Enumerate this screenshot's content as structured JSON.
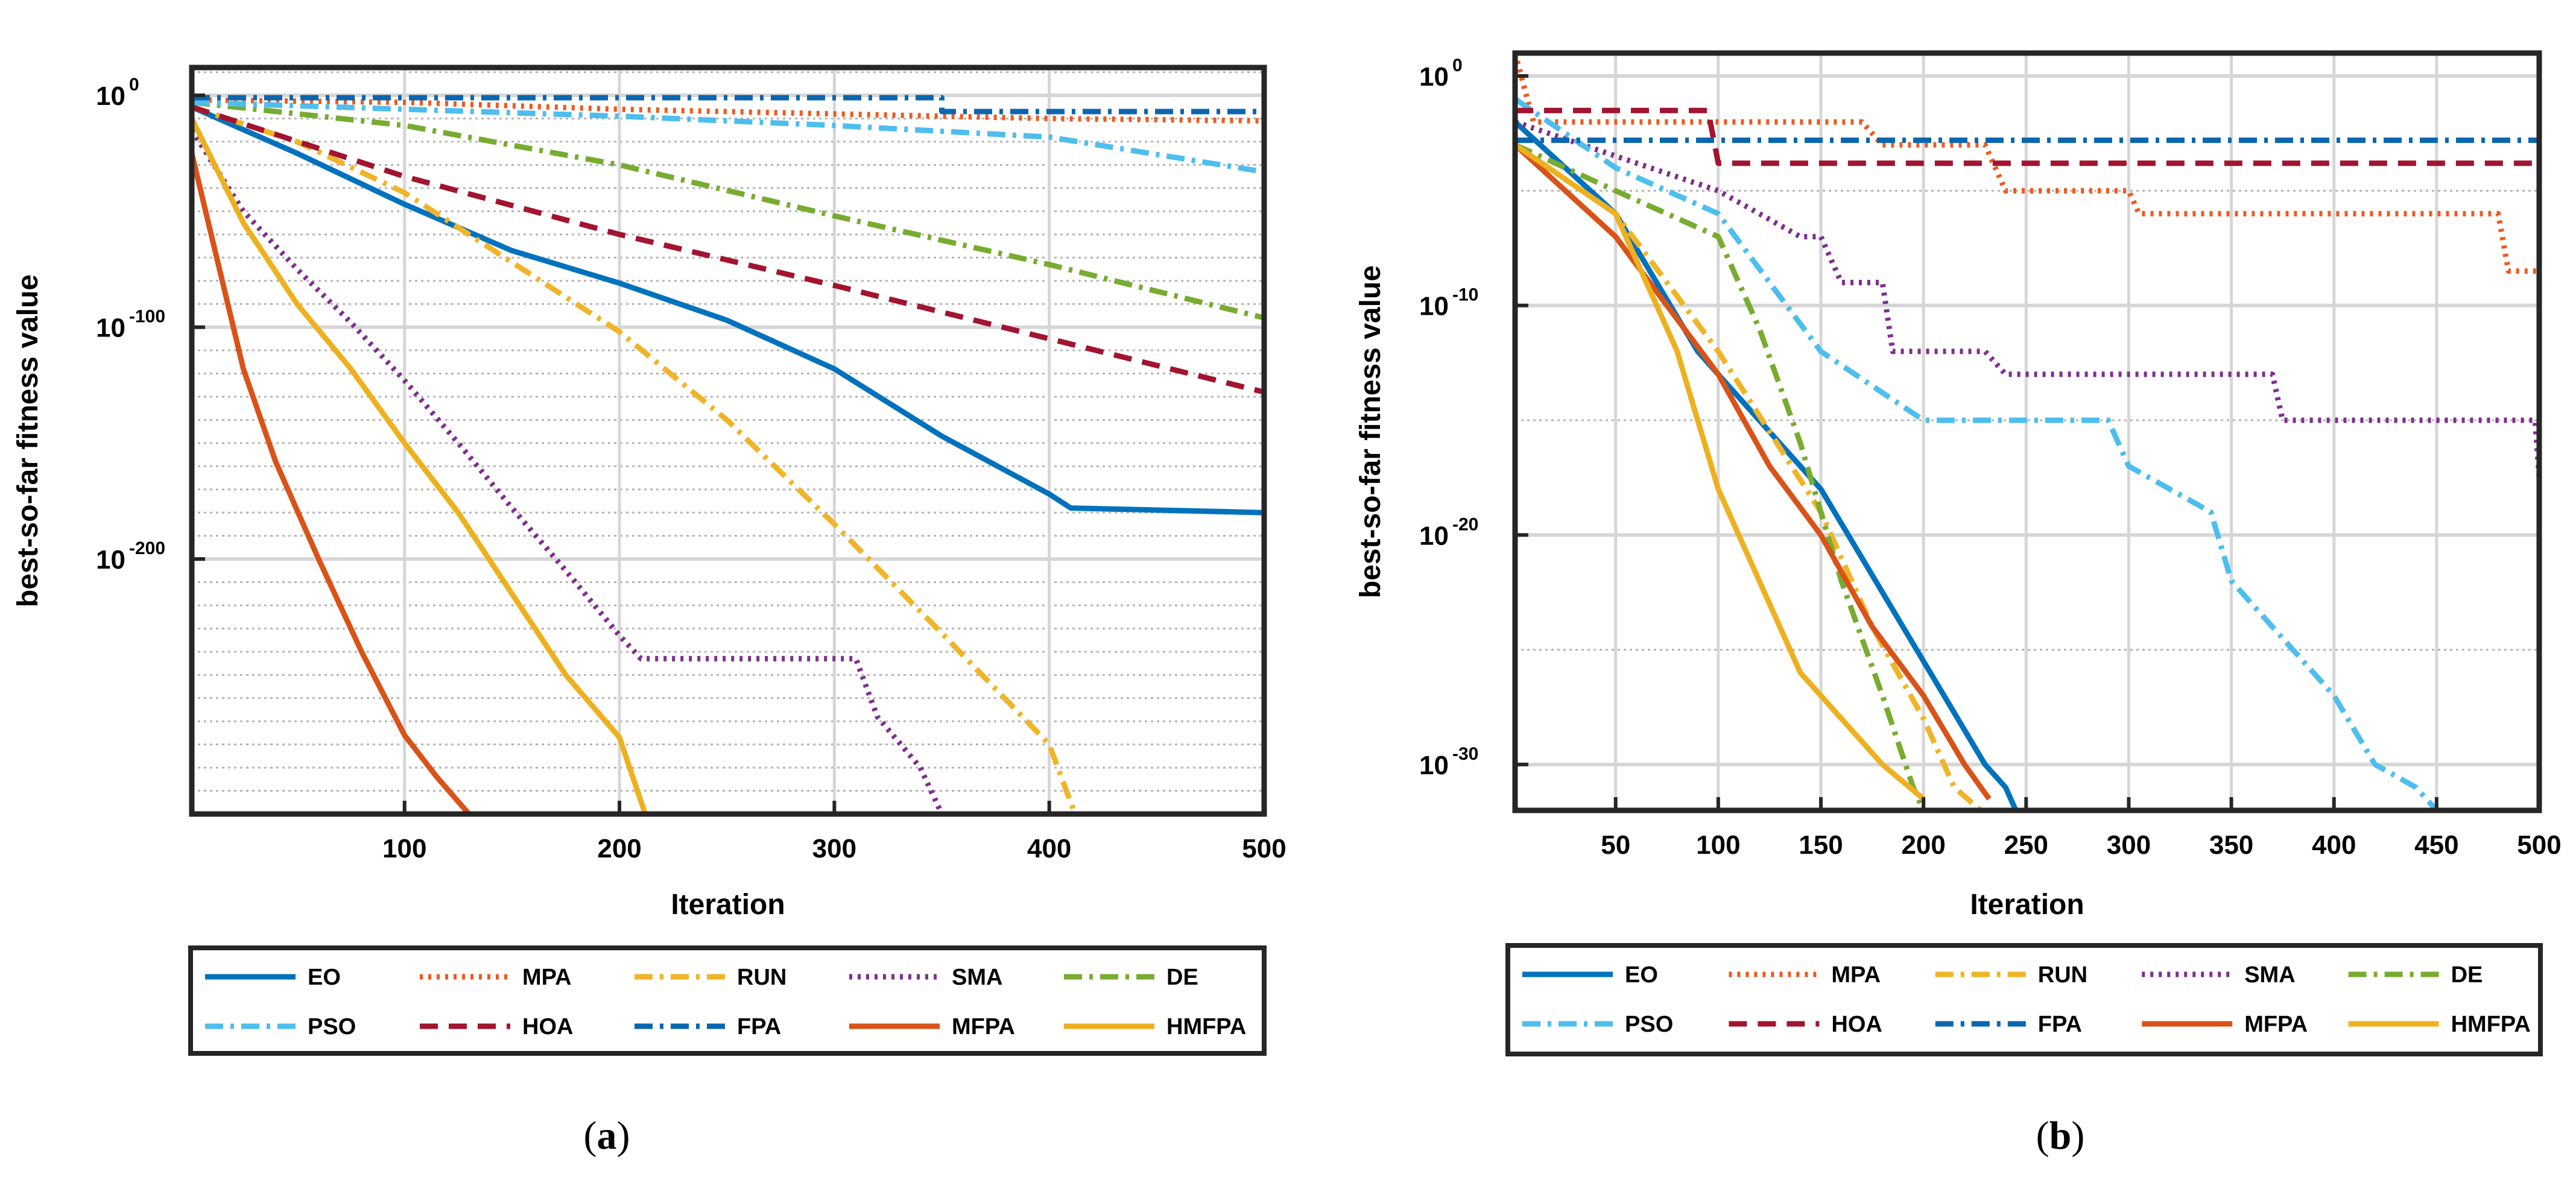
{
  "palette": {
    "EO": "#0072BD",
    "MPA": "#EE5A1F",
    "RUN": "#F0B428",
    "SMA": "#7E2F8E",
    "DE": "#77AC30",
    "PSO": "#4DBEEE",
    "HOA": "#A2142F",
    "FPA": "#0A66B0",
    "MFPA": "#D95319",
    "HMFPA": "#EDB120"
  },
  "chart_data": [
    {
      "id": "a",
      "type": "line",
      "caption_letter": "a",
      "xlabel": "Iteration",
      "ylabel": "best-so-far fitness value",
      "xlim": [
        1,
        500
      ],
      "ylim": [
        -310,
        12
      ],
      "y_scale": "log",
      "grid": true,
      "x_ticks": [
        100,
        200,
        300,
        400,
        500
      ],
      "y_ticks": [
        {
          "base": "10",
          "exp": "0",
          "value": 0
        },
        {
          "base": "10",
          "exp": "-100",
          "value": -100
        },
        {
          "base": "10",
          "exp": "-200",
          "value": -200
        }
      ],
      "legend": {
        "placement": "bottom",
        "entries": [
          "EO",
          "MPA",
          "RUN",
          "SMA",
          "DE",
          "PSO",
          "HOA",
          "FPA",
          "MFPA",
          "HMFPA"
        ]
      },
      "series": [
        {
          "name": "EO",
          "style": "solid",
          "x": [
            1,
            50,
            100,
            150,
            200,
            250,
            300,
            350,
            400,
            410,
            500
          ],
          "y": [
            -5,
            -25,
            -47,
            -67,
            -81,
            -97,
            -118,
            -147,
            -172,
            -178,
            -180
          ]
        },
        {
          "name": "MPA",
          "style": "dotted",
          "x": [
            1,
            100,
            200,
            300,
            350,
            400,
            500
          ],
          "y": [
            -2,
            -3,
            -6,
            -8,
            -9,
            -10,
            -11
          ]
        },
        {
          "name": "RUN",
          "style": "dashdot",
          "x": [
            1,
            50,
            100,
            150,
            200,
            250,
            300,
            350,
            400,
            412
          ],
          "y": [
            -5,
            -20,
            -42,
            -72,
            -102,
            -140,
            -185,
            -232,
            -280,
            -310
          ]
        },
        {
          "name": "SMA",
          "style": "dotted",
          "x": [
            1,
            25,
            50,
            75,
            100,
            125,
            150,
            175,
            200,
            210,
            300,
            310,
            320,
            340,
            350
          ],
          "y": [
            -15,
            -50,
            -75,
            -98,
            -123,
            -150,
            -178,
            -205,
            -233,
            -243,
            -243,
            -243,
            -268,
            -290,
            -310
          ]
        },
        {
          "name": "DE",
          "style": "dashdot",
          "x": [
            1,
            100,
            200,
            300,
            400,
            500
          ],
          "y": [
            -3,
            -13,
            -30,
            -52,
            -73,
            -96
          ]
        },
        {
          "name": "PSO",
          "style": "dashdot",
          "x": [
            1,
            100,
            200,
            300,
            400,
            500
          ],
          "y": [
            -3,
            -6,
            -9,
            -13,
            -18,
            -33
          ]
        },
        {
          "name": "HOA",
          "style": "dashed",
          "x": [
            1,
            100,
            200,
            300,
            400,
            500
          ],
          "y": [
            -5,
            -35,
            -60,
            -82,
            -105,
            -128
          ]
        },
        {
          "name": "FPA",
          "style": "dashdot",
          "x": [
            1,
            350,
            350,
            500
          ],
          "y": [
            -1,
            -1,
            -7,
            -7
          ]
        },
        {
          "name": "MFPA",
          "style": "solid",
          "x": [
            1,
            10,
            25,
            40,
            60,
            80,
            100,
            115,
            130
          ],
          "y": [
            -25,
            -60,
            -118,
            -158,
            -200,
            -240,
            -276,
            -294,
            -310
          ]
        },
        {
          "name": "HMFPA",
          "style": "solid",
          "x": [
            1,
            25,
            50,
            75,
            100,
            125,
            150,
            175,
            200,
            212
          ],
          "y": [
            -10,
            -55,
            -90,
            -118,
            -150,
            -180,
            -215,
            -250,
            -277,
            -310
          ]
        }
      ]
    },
    {
      "id": "b",
      "type": "line",
      "caption_letter": "b",
      "xlabel": "Iteration",
      "ylabel": "best-so-far fitness value",
      "xlim": [
        1,
        500
      ],
      "ylim": [
        -32,
        1
      ],
      "y_scale": "log",
      "grid": true,
      "x_ticks": [
        50,
        100,
        150,
        200,
        250,
        300,
        350,
        400,
        450,
        500
      ],
      "y_ticks": [
        {
          "base": "10",
          "exp": "0",
          "value": 0
        },
        {
          "base": "10",
          "exp": "-10",
          "value": -10
        },
        {
          "base": "10",
          "exp": "-20",
          "value": -20
        },
        {
          "base": "10",
          "exp": "-30",
          "value": -30
        }
      ],
      "legend": {
        "placement": "bottom",
        "entries": [
          "EO",
          "MPA",
          "RUN",
          "SMA",
          "DE",
          "PSO",
          "HOA",
          "FPA",
          "MFPA",
          "HMFPA"
        ]
      },
      "series": [
        {
          "name": "EO",
          "style": "solid",
          "x": [
            1,
            50,
            90,
            120,
            150,
            170,
            190,
            210,
            230,
            240,
            245
          ],
          "y": [
            -2,
            -6,
            -12,
            -15,
            -18,
            -21,
            -24,
            -27,
            -30,
            -31,
            -32
          ]
        },
        {
          "name": "MPA",
          "style": "dotted",
          "x": [
            1,
            10,
            170,
            180,
            230,
            240,
            300,
            305,
            480,
            485,
            500
          ],
          "y": [
            1,
            -2,
            -2,
            -3,
            -3,
            -5,
            -5,
            -6,
            -6,
            -8.5,
            -8.5
          ]
        },
        {
          "name": "RUN",
          "style": "dashdot",
          "x": [
            1,
            50,
            100,
            150,
            175,
            200,
            215,
            228
          ],
          "y": [
            -3,
            -6,
            -12,
            -19,
            -24,
            -28,
            -31,
            -32
          ]
        },
        {
          "name": "SMA",
          "style": "dotted",
          "x": [
            1,
            100,
            140,
            150,
            160,
            180,
            185,
            230,
            240,
            370,
            375,
            498,
            500
          ],
          "y": [
            -2,
            -5,
            -7,
            -7,
            -9,
            -9,
            -12,
            -12,
            -13,
            -13,
            -15,
            -15,
            -17.5
          ]
        },
        {
          "name": "DE",
          "style": "dashdot",
          "x": [
            1,
            50,
            100,
            120,
            140,
            160,
            180,
            195,
            200
          ],
          "y": [
            -3,
            -5,
            -7,
            -11,
            -16,
            -22,
            -27,
            -31,
            -32
          ]
        },
        {
          "name": "PSO",
          "style": "dashdot",
          "x": [
            1,
            50,
            100,
            150,
            200,
            230,
            290,
            300,
            340,
            350,
            380,
            400,
            420,
            440,
            450,
            455
          ],
          "y": [
            -1,
            -4,
            -6,
            -12,
            -15,
            -15,
            -15,
            -17,
            -19,
            -22,
            -25,
            -27,
            -30,
            -31,
            -32,
            -32
          ]
        },
        {
          "name": "HOA",
          "style": "dashed",
          "x": [
            1,
            5,
            95,
            100,
            500
          ],
          "y": [
            -1.5,
            -1.5,
            -1.5,
            -3.8,
            -3.8
          ]
        },
        {
          "name": "FPA",
          "style": "dashdot",
          "x": [
            1,
            500
          ],
          "y": [
            -2.8,
            -2.8
          ]
        },
        {
          "name": "MFPA",
          "style": "solid",
          "x": [
            1,
            50,
            100,
            125,
            150,
            175,
            200,
            220,
            232
          ],
          "y": [
            -3,
            -7,
            -13,
            -17,
            -20,
            -24,
            -27,
            -30,
            -31.5
          ]
        },
        {
          "name": "HMFPA",
          "style": "solid",
          "x": [
            1,
            50,
            80,
            100,
            120,
            140,
            160,
            180,
            200
          ],
          "y": [
            -3,
            -6,
            -12,
            -18,
            -22,
            -26,
            -28,
            -30,
            -31.5
          ]
        }
      ]
    }
  ]
}
